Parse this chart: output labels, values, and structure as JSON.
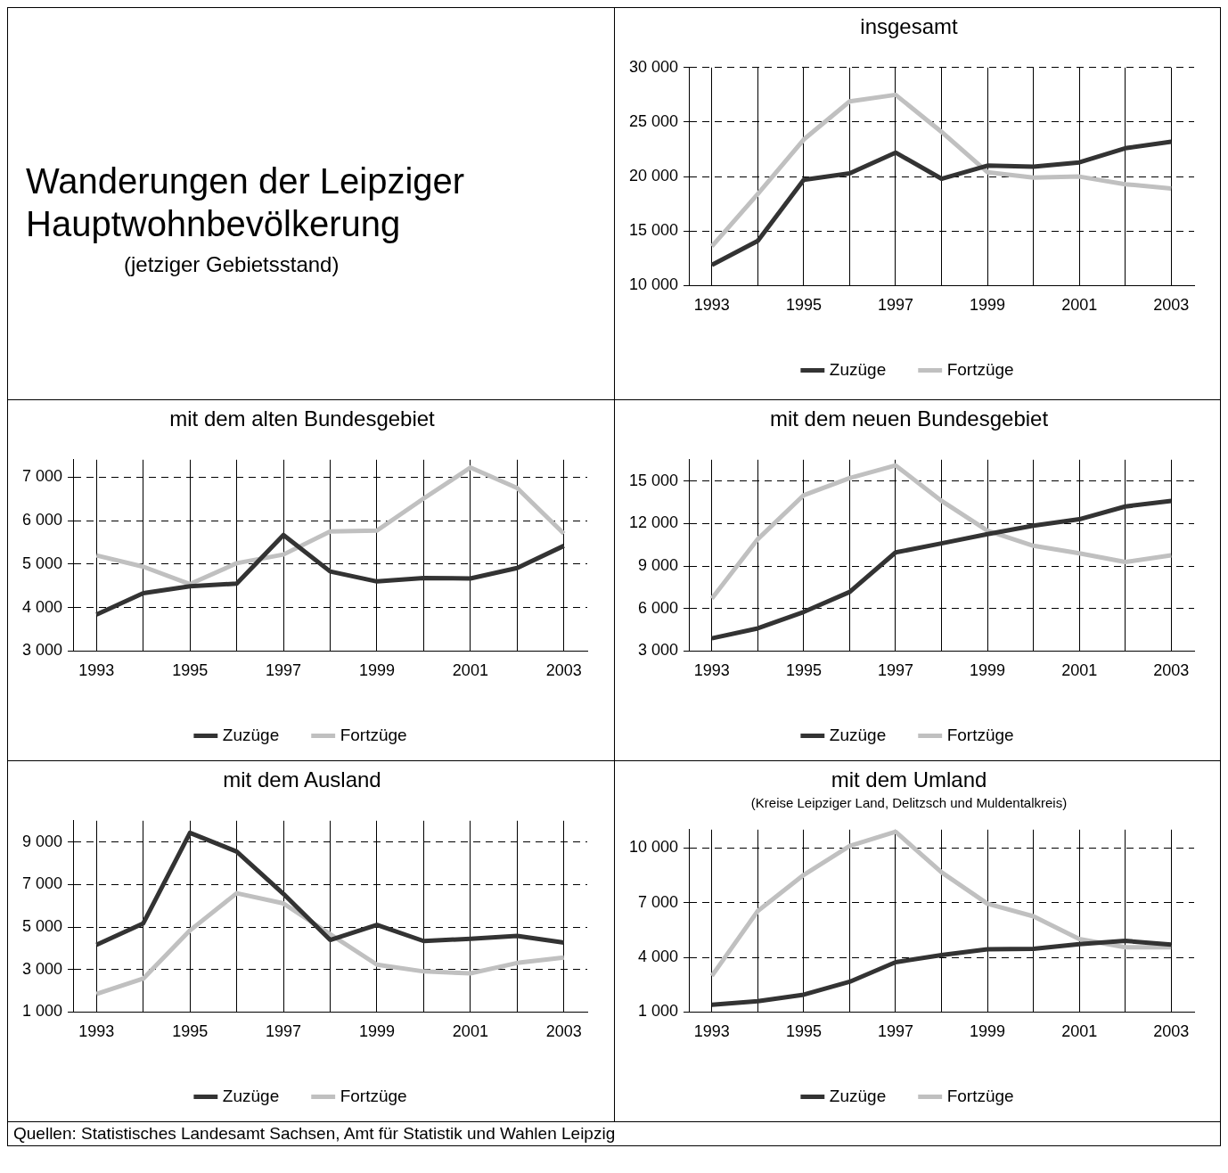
{
  "chart_data": [
    {
      "type": "other",
      "title": "Wanderungen der Leipziger Hauptwohnbevölkerung",
      "subtitle": "(jetziger Gebietsstand)",
      "annotations": [
        "Quellen: Statistisches Landesamt Sachsen, Amt für Statistik und Wahlen Leipzig"
      ]
    },
    {
      "type": "line",
      "title": "insgesamt",
      "categories": [
        "1993",
        null,
        "1995",
        null,
        "1997",
        null,
        "1999",
        null,
        "2001",
        null,
        "2003"
      ],
      "series": [
        {
          "name": "Zuzüge",
          "color": "#333333",
          "values": [
            11900,
            14100,
            19700,
            20300,
            22200,
            19800,
            21000,
            20900,
            21300,
            22600,
            23200
          ]
        },
        {
          "name": "Fortzüge",
          "color": "#c0c0c0",
          "values": [
            13600,
            18400,
            23400,
            26900,
            27500,
            24100,
            20400,
            19900,
            20000,
            19300,
            18900
          ]
        }
      ],
      "ylim": [
        10000,
        30000
      ],
      "yticks": [
        {
          "value": 10000,
          "label": "10 000"
        },
        {
          "value": 15000,
          "label": "15 000"
        },
        {
          "value": 20000,
          "label": "20 000"
        },
        {
          "value": 25000,
          "label": "25 000"
        },
        {
          "value": 30000,
          "label": "30 000"
        }
      ],
      "grid": true,
      "legend": "bottom",
      "marker": "none",
      "line_style": "solid"
    },
    {
      "type": "line",
      "title": "mit dem alten Bundesgebiet",
      "categories": [
        "1993",
        null,
        "1995",
        null,
        "1997",
        null,
        "1999",
        null,
        "2001",
        null,
        "2003"
      ],
      "series": [
        {
          "name": "Zuzüge",
          "color": "#333333",
          "values": [
            3840,
            4330,
            4490,
            4550,
            5670,
            4830,
            4600,
            4680,
            4670,
            4910,
            5420
          ]
        },
        {
          "name": "Fortzüge",
          "color": "#c0c0c0",
          "values": [
            5200,
            4940,
            4540,
            5020,
            5220,
            5750,
            5770,
            6510,
            7220,
            6750,
            5700
          ]
        }
      ],
      "ylim": [
        3000,
        7400
      ],
      "yticks": [
        {
          "value": 3000,
          "label": "3 000"
        },
        {
          "value": 4000,
          "label": "4 000"
        },
        {
          "value": 5000,
          "label": "5 000"
        },
        {
          "value": 6000,
          "label": "6 000"
        },
        {
          "value": 7000,
          "label": "7 000"
        }
      ],
      "grid": true,
      "legend": "bottom",
      "marker": "none",
      "line_style": "solid"
    },
    {
      "type": "line",
      "title": "mit dem neuen Bundesgebiet",
      "categories": [
        "1993",
        null,
        "1995",
        null,
        "1997",
        null,
        "1999",
        null,
        "2001",
        null,
        "2003"
      ],
      "series": [
        {
          "name": "Zuzüge",
          "color": "#333333",
          "values": [
            3900,
            4600,
            5760,
            7170,
            9960,
            10600,
            11250,
            11850,
            12300,
            13200,
            13600
          ]
        },
        {
          "name": "Fortzüge",
          "color": "#c0c0c0",
          "values": [
            6700,
            10900,
            14000,
            15200,
            16100,
            13600,
            11500,
            10430,
            9900,
            9280,
            9760
          ]
        }
      ],
      "ylim": [
        3000,
        16500
      ],
      "yticks": [
        {
          "value": 3000,
          "label": "3 000"
        },
        {
          "value": 6000,
          "label": "6 000"
        },
        {
          "value": 9000,
          "label": "9 000"
        },
        {
          "value": 12000,
          "label": "12 000"
        },
        {
          "value": 15000,
          "label": "15 000"
        }
      ],
      "grid": true,
      "legend": "bottom",
      "marker": "none",
      "line_style": "solid"
    },
    {
      "type": "line",
      "title": "mit dem Ausland",
      "categories": [
        "1993",
        null,
        "1995",
        null,
        "1997",
        null,
        "1999",
        null,
        "2001",
        null,
        "2003"
      ],
      "series": [
        {
          "name": "Zuzüge",
          "color": "#333333",
          "values": [
            4160,
            5170,
            9430,
            8550,
            6560,
            4390,
            5100,
            4340,
            4450,
            4580,
            4270
          ]
        },
        {
          "name": "Fortzüge",
          "color": "#c0c0c0",
          "values": [
            1850,
            2570,
            4840,
            6590,
            6110,
            4660,
            3230,
            2910,
            2820,
            3310,
            3560
          ]
        }
      ],
      "ylim": [
        1000,
        10000
      ],
      "yticks": [
        {
          "value": 1000,
          "label": "1 000"
        },
        {
          "value": 3000,
          "label": "3 000"
        },
        {
          "value": 5000,
          "label": "5 000"
        },
        {
          "value": 7000,
          "label": "7 000"
        },
        {
          "value": 9000,
          "label": "9 000"
        }
      ],
      "grid": true,
      "legend": "bottom",
      "marker": "none",
      "line_style": "solid"
    },
    {
      "type": "line",
      "title": "mit dem Umland",
      "subtitle": "(Kreise Leipziger Land, Delitzsch und Muldentalkreis)",
      "categories": [
        "1993",
        null,
        "1995",
        null,
        "1997",
        null,
        "1999",
        null,
        "2001",
        null,
        "2003"
      ],
      "series": [
        {
          "name": "Zuzüge",
          "color": "#333333",
          "values": [
            1400,
            1590,
            1950,
            2660,
            3730,
            4120,
            4440,
            4460,
            4720,
            4900,
            4700
          ]
        },
        {
          "name": "Fortzüge",
          "color": "#c0c0c0",
          "values": [
            2980,
            6540,
            8520,
            10100,
            10890,
            8660,
            6940,
            6250,
            5000,
            4550,
            4550
          ]
        }
      ],
      "ylim": [
        1000,
        11000
      ],
      "yticks": [
        {
          "value": 1000,
          "label": "1 000"
        },
        {
          "value": 4000,
          "label": "4 000"
        },
        {
          "value": 7000,
          "label": "7 000"
        },
        {
          "value": 10000,
          "label": "10 000"
        }
      ],
      "grid": true,
      "legend": "bottom",
      "marker": "none",
      "line_style": "solid"
    }
  ]
}
